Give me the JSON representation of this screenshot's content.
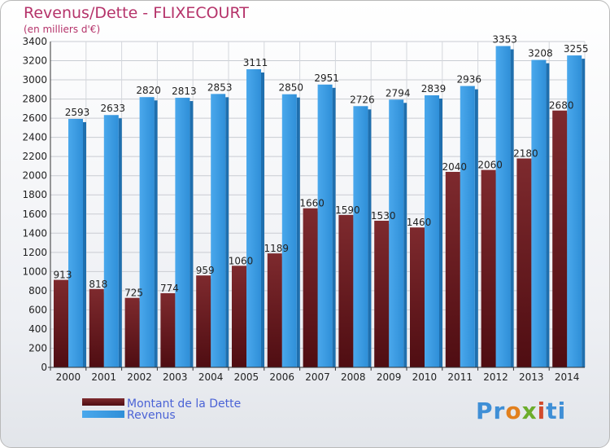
{
  "header": {
    "title": "Revenus/Dette - FLIXECOURT",
    "subtitle": "(en milliers d'€)"
  },
  "colors": {
    "dette": "#6b1a1f",
    "revenus": "#3c9de3",
    "title": "#b5336a",
    "legend_text": "#4b63d6"
  },
  "logo": {
    "text": "Proxiti"
  },
  "chart_data": {
    "type": "bar",
    "title": "Revenus/Dette - FLIXECOURT",
    "subtitle": "(en milliers d'€)",
    "xlabel": "",
    "ylabel": "",
    "ylim": [
      0,
      3400
    ],
    "yticks": [
      0,
      200,
      400,
      600,
      800,
      1000,
      1200,
      1400,
      1600,
      1800,
      2000,
      2200,
      2400,
      2600,
      2800,
      3000,
      3200,
      3400
    ],
    "categories": [
      "2000",
      "2001",
      "2002",
      "2003",
      "2004",
      "2005",
      "2006",
      "2007",
      "2008",
      "2009",
      "2010",
      "2011",
      "2012",
      "2013",
      "2014"
    ],
    "series": [
      {
        "name": "Montant de la Dette",
        "color": "#6b1a1f",
        "values": [
          913,
          818,
          725,
          774,
          959,
          1060,
          1189,
          1660,
          1590,
          1530,
          1460,
          2040,
          2060,
          2180,
          2680
        ],
        "labels": [
          "913",
          "818",
          "725",
          "774",
          "959",
          "1060",
          "1189",
          "1660",
          "1590",
          "1530",
          "1460",
          "2040",
          "2060",
          "2180",
          "2680"
        ]
      },
      {
        "name": "Revenus",
        "color": "#3c9de3",
        "values": [
          2593,
          2633,
          2820,
          2813,
          2853,
          3111,
          2850,
          2951,
          2726,
          2794,
          2839,
          2936,
          3353,
          3208,
          3255
        ],
        "labels": [
          "2593",
          "2633",
          "2820",
          "2813",
          "2853",
          "3111",
          "2850",
          "2951",
          "2726",
          "2794",
          "2839",
          "2936",
          "3353",
          "3208",
          "3255"
        ]
      }
    ],
    "grid": true,
    "legend": "bottom-left"
  }
}
